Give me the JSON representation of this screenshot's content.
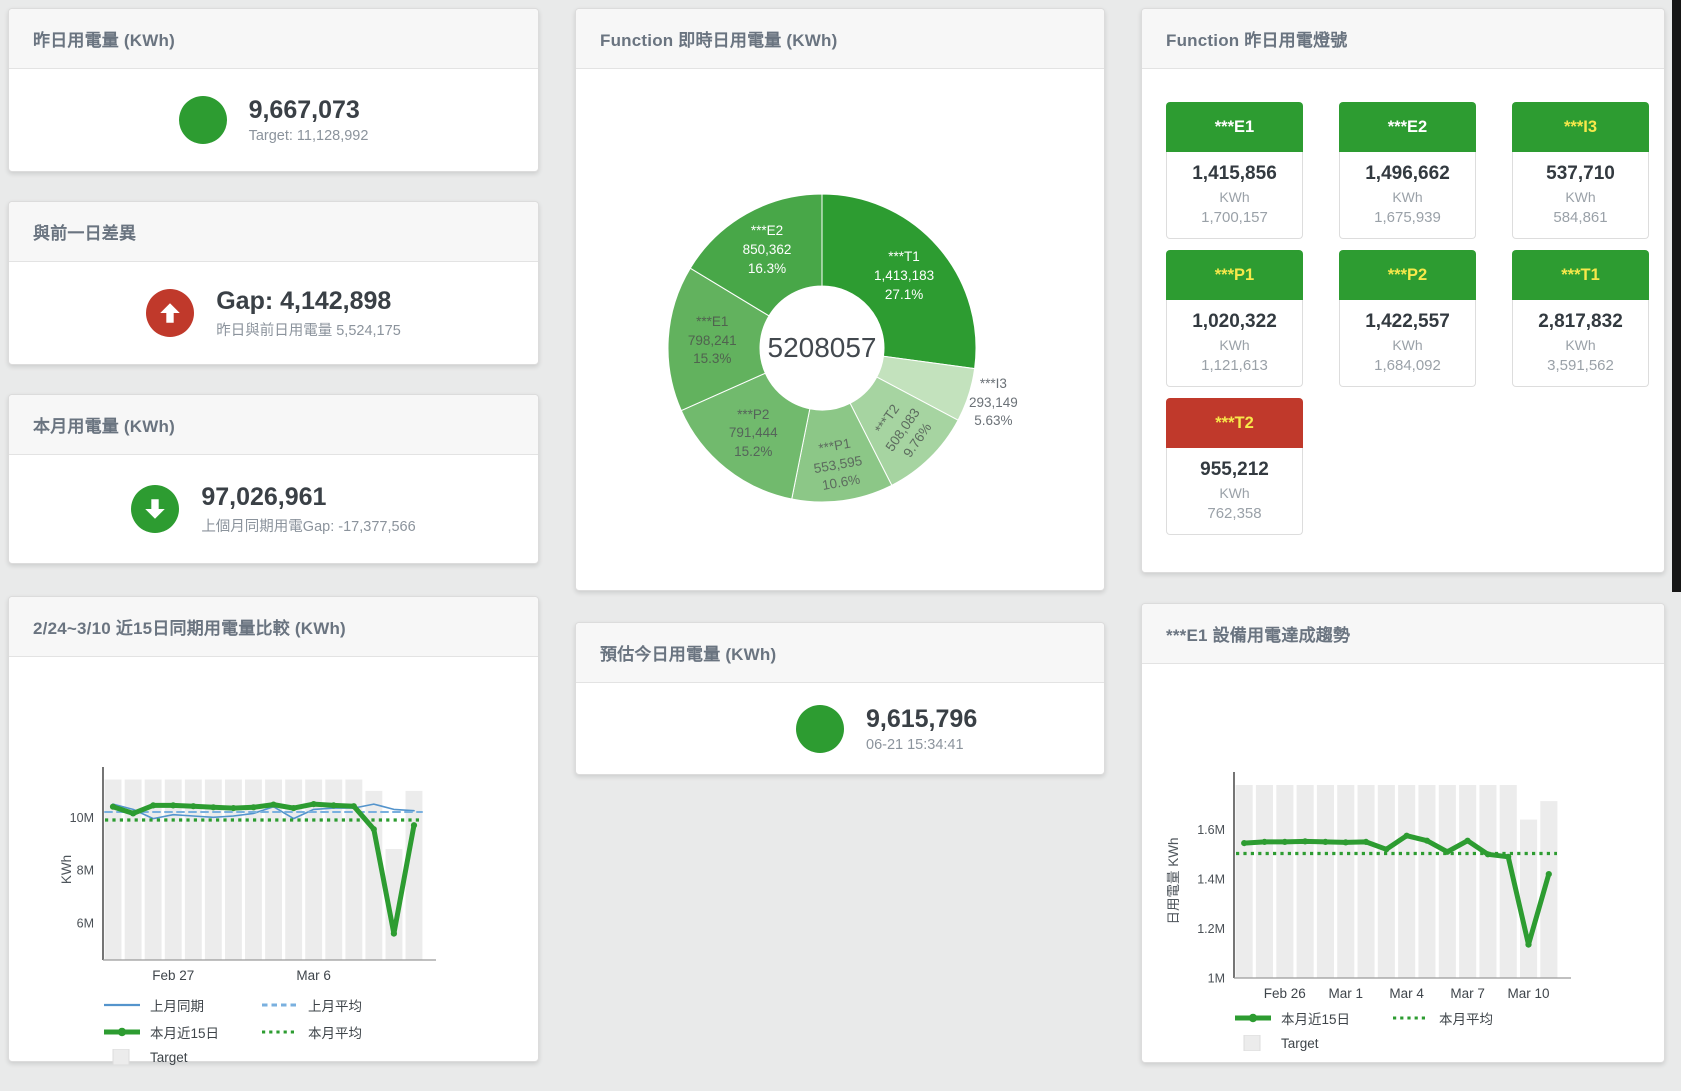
{
  "colors": {
    "green": "#2d9c31",
    "red": "#c0392b",
    "blue": "#5494cc",
    "blue_light": "#7ab0df",
    "bar_gray": "#ececec",
    "yellow": "#f7e84b",
    "white": "#ffffff"
  },
  "panels": {
    "yesterday": {
      "title": "昨日用電量 (KWh)",
      "value": "9,667,073",
      "subtitle": "Target: 11,128,992",
      "indicator": "green-circle"
    },
    "gap_prev_day": {
      "title": "與前一日差異",
      "value": "Gap: 4,142,898",
      "subtitle": "昨日與前日用電量 5,524,175",
      "indicator": "red-up-arrow"
    },
    "month": {
      "title": "本月用電量 (KWh)",
      "value": "97,026,961",
      "subtitle": "上個月同期用電Gap: -17,377,566",
      "indicator": "green-down-arrow"
    },
    "estimate_today": {
      "title": "預估今日用電量 (KWh)",
      "value": "9,615,796",
      "subtitle": "06-21 15:34:41",
      "indicator": "green-circle"
    },
    "lights": {
      "title": "Function 昨日用電燈號",
      "tiles": [
        {
          "label": "***E1",
          "value": "1,415,856",
          "unit": "KWh",
          "target": "1,700,157",
          "status": "ok",
          "label_color": "white"
        },
        {
          "label": "***E2",
          "value": "1,496,662",
          "unit": "KWh",
          "target": "1,675,939",
          "status": "ok",
          "label_color": "white"
        },
        {
          "label": "***I3",
          "value": "537,710",
          "unit": "KWh",
          "target": "584,861",
          "status": "ok",
          "label_color": "yellow"
        },
        {
          "label": "***P1",
          "value": "1,020,322",
          "unit": "KWh",
          "target": "1,121,613",
          "status": "ok",
          "label_color": "yellow"
        },
        {
          "label": "***P2",
          "value": "1,422,557",
          "unit": "KWh",
          "target": "1,684,092",
          "status": "ok",
          "label_color": "yellow"
        },
        {
          "label": "***T1",
          "value": "2,817,832",
          "unit": "KWh",
          "target": "3,591,562",
          "status": "ok",
          "label_color": "yellow"
        },
        {
          "label": "***T2",
          "value": "955,212",
          "unit": "KWh",
          "target": "762,358",
          "status": "alert",
          "label_color": "yellow"
        }
      ]
    }
  },
  "chart_data": [
    {
      "type": "pie",
      "title": "Function 即時日用電量 (KWh)",
      "center_label": "5208057",
      "total": 5208057,
      "slices": [
        {
          "name": "***T1",
          "value": 1413183,
          "display": "1,413,183",
          "pct": "27.1%",
          "color": "#2d9c31",
          "label_color": "#ffffff",
          "label_r": 109,
          "label_rot": 0,
          "outside": false
        },
        {
          "name": "***I3",
          "value": 293149,
          "display": "293,149",
          "pct": "5.63%",
          "color": "#c3e2bd",
          "label_color": "#6b7177",
          "label_r": 180,
          "label_rot": 0,
          "outside": true
        },
        {
          "name": "***T2",
          "value": 508083,
          "display": "508,083",
          "pct": "9.76%",
          "color": "#a6d4a1",
          "label_color": "#5c6b5e",
          "label_r": 115,
          "label_rot": -55,
          "outside": false
        },
        {
          "name": "***P1",
          "value": 553595,
          "display": "553,595",
          "pct": "10.6%",
          "color": "#8cc787",
          "label_color": "#5c6b5e",
          "label_r": 118,
          "label_rot": -10,
          "outside": false
        },
        {
          "name": "***P2",
          "value": 791444,
          "display": "791,444",
          "pct": "15.2%",
          "color": "#71ba6d",
          "label_color": "#55645a",
          "label_r": 110,
          "label_rot": 0,
          "outside": false
        },
        {
          "name": "***E1",
          "value": 798241,
          "display": "798,241",
          "pct": "15.3%",
          "color": "#62b25e",
          "label_color": "#50624f",
          "label_r": 110,
          "label_rot": 0,
          "outside": false
        },
        {
          "name": "***E2",
          "value": 850362,
          "display": "850,362",
          "pct": "16.3%",
          "color": "#48a748",
          "label_color": "#ffffff",
          "label_r": 112,
          "label_rot": 0,
          "outside": false
        }
      ],
      "legend_position": "none"
    },
    {
      "type": "line",
      "title": "2/24~3/10 近15日同期用電量比較 (KWh)",
      "ylabel": "KWh",
      "unit": "millions",
      "ylim": [
        4.6,
        11.45
      ],
      "grid": false,
      "yticks": [
        {
          "v": 6,
          "label": "6M"
        },
        {
          "v": 8,
          "label": "8M"
        },
        {
          "v": 10,
          "label": "10M"
        }
      ],
      "xticks": [
        {
          "i": 3,
          "label": "Feb 27"
        },
        {
          "i": 10,
          "label": "Mar 6"
        }
      ],
      "target_bars": [
        11.43,
        11.43,
        11.43,
        11.43,
        11.43,
        11.43,
        11.43,
        11.43,
        11.43,
        11.43,
        11.43,
        11.43,
        11.43,
        11.0,
        8.8,
        11.0
      ],
      "target_color": "#ececec",
      "series": [
        {
          "name": "上月同期",
          "style": "solid",
          "width": 1.6,
          "color": "#5494cc",
          "values": [
            10.5,
            10.3,
            9.95,
            10.1,
            10.05,
            10.0,
            10.05,
            10.15,
            10.4,
            9.95,
            10.3,
            10.35,
            10.35,
            10.5,
            10.3,
            10.25
          ]
        },
        {
          "name": "上月平均",
          "style": "dashed",
          "width": 2,
          "color": "#7ab0df",
          "constant": 10.2
        },
        {
          "name": "本月近15日",
          "style": "solid",
          "width": 5,
          "color": "#2d9c31",
          "values": [
            10.4,
            10.15,
            10.45,
            10.45,
            10.42,
            10.38,
            10.35,
            10.38,
            10.48,
            10.35,
            10.5,
            10.45,
            10.42,
            9.55,
            5.6,
            9.7
          ]
        },
        {
          "name": "本月平均",
          "style": "dotted",
          "width": 3.2,
          "color": "#2d9c31",
          "constant": 9.9
        }
      ],
      "legend_position": "bottom",
      "legend": [
        {
          "label": "上月同期",
          "swatch": "line",
          "color": "#5494cc"
        },
        {
          "label": "上月平均",
          "swatch": "dashed",
          "color": "#7ab0df"
        },
        {
          "label": "本月近15日",
          "swatch": "thick",
          "color": "#2d9c31"
        },
        {
          "label": "本月平均",
          "swatch": "dotted",
          "color": "#2d9c31"
        },
        {
          "label": "Target",
          "swatch": "square",
          "color": "#ececec"
        }
      ]
    },
    {
      "type": "line",
      "title": "***E1 設備用電達成趨勢",
      "ylabel": "日用電量 KWh",
      "unit": "millions",
      "ylim": [
        1.0,
        1.784
      ],
      "grid": false,
      "yticks": [
        {
          "v": 1,
          "label": "1M"
        },
        {
          "v": 1.2,
          "label": "1.2M"
        },
        {
          "v": 1.4,
          "label": "1.4M"
        },
        {
          "v": 1.6,
          "label": "1.6M"
        }
      ],
      "xticks": [
        {
          "i": 2,
          "label": "Feb 26"
        },
        {
          "i": 5,
          "label": "Mar 1"
        },
        {
          "i": 8,
          "label": "Mar 4"
        },
        {
          "i": 11,
          "label": "Mar 7"
        },
        {
          "i": 14,
          "label": "Mar 10"
        }
      ],
      "target_bars": [
        1.78,
        1.78,
        1.78,
        1.78,
        1.78,
        1.78,
        1.78,
        1.78,
        1.78,
        1.78,
        1.78,
        1.78,
        1.78,
        1.78,
        1.64,
        1.715
      ],
      "target_color": "#ececec",
      "series": [
        {
          "name": "本月近15日",
          "style": "solid",
          "width": 5,
          "color": "#2d9c31",
          "values": [
            1.545,
            1.55,
            1.55,
            1.552,
            1.55,
            1.548,
            1.55,
            1.52,
            1.575,
            1.555,
            1.51,
            1.555,
            1.5,
            1.49,
            1.135,
            1.42
          ]
        },
        {
          "name": "本月平均",
          "style": "dotted",
          "width": 3.2,
          "color": "#2d9c31",
          "constant": 1.503
        }
      ],
      "legend_position": "bottom",
      "legend": [
        {
          "label": "本月近15日",
          "swatch": "thick",
          "color": "#2d9c31"
        },
        {
          "label": "本月平均",
          "swatch": "dotted",
          "color": "#2d9c31"
        },
        {
          "label": "Target",
          "swatch": "square",
          "color": "#ececec"
        }
      ]
    }
  ]
}
